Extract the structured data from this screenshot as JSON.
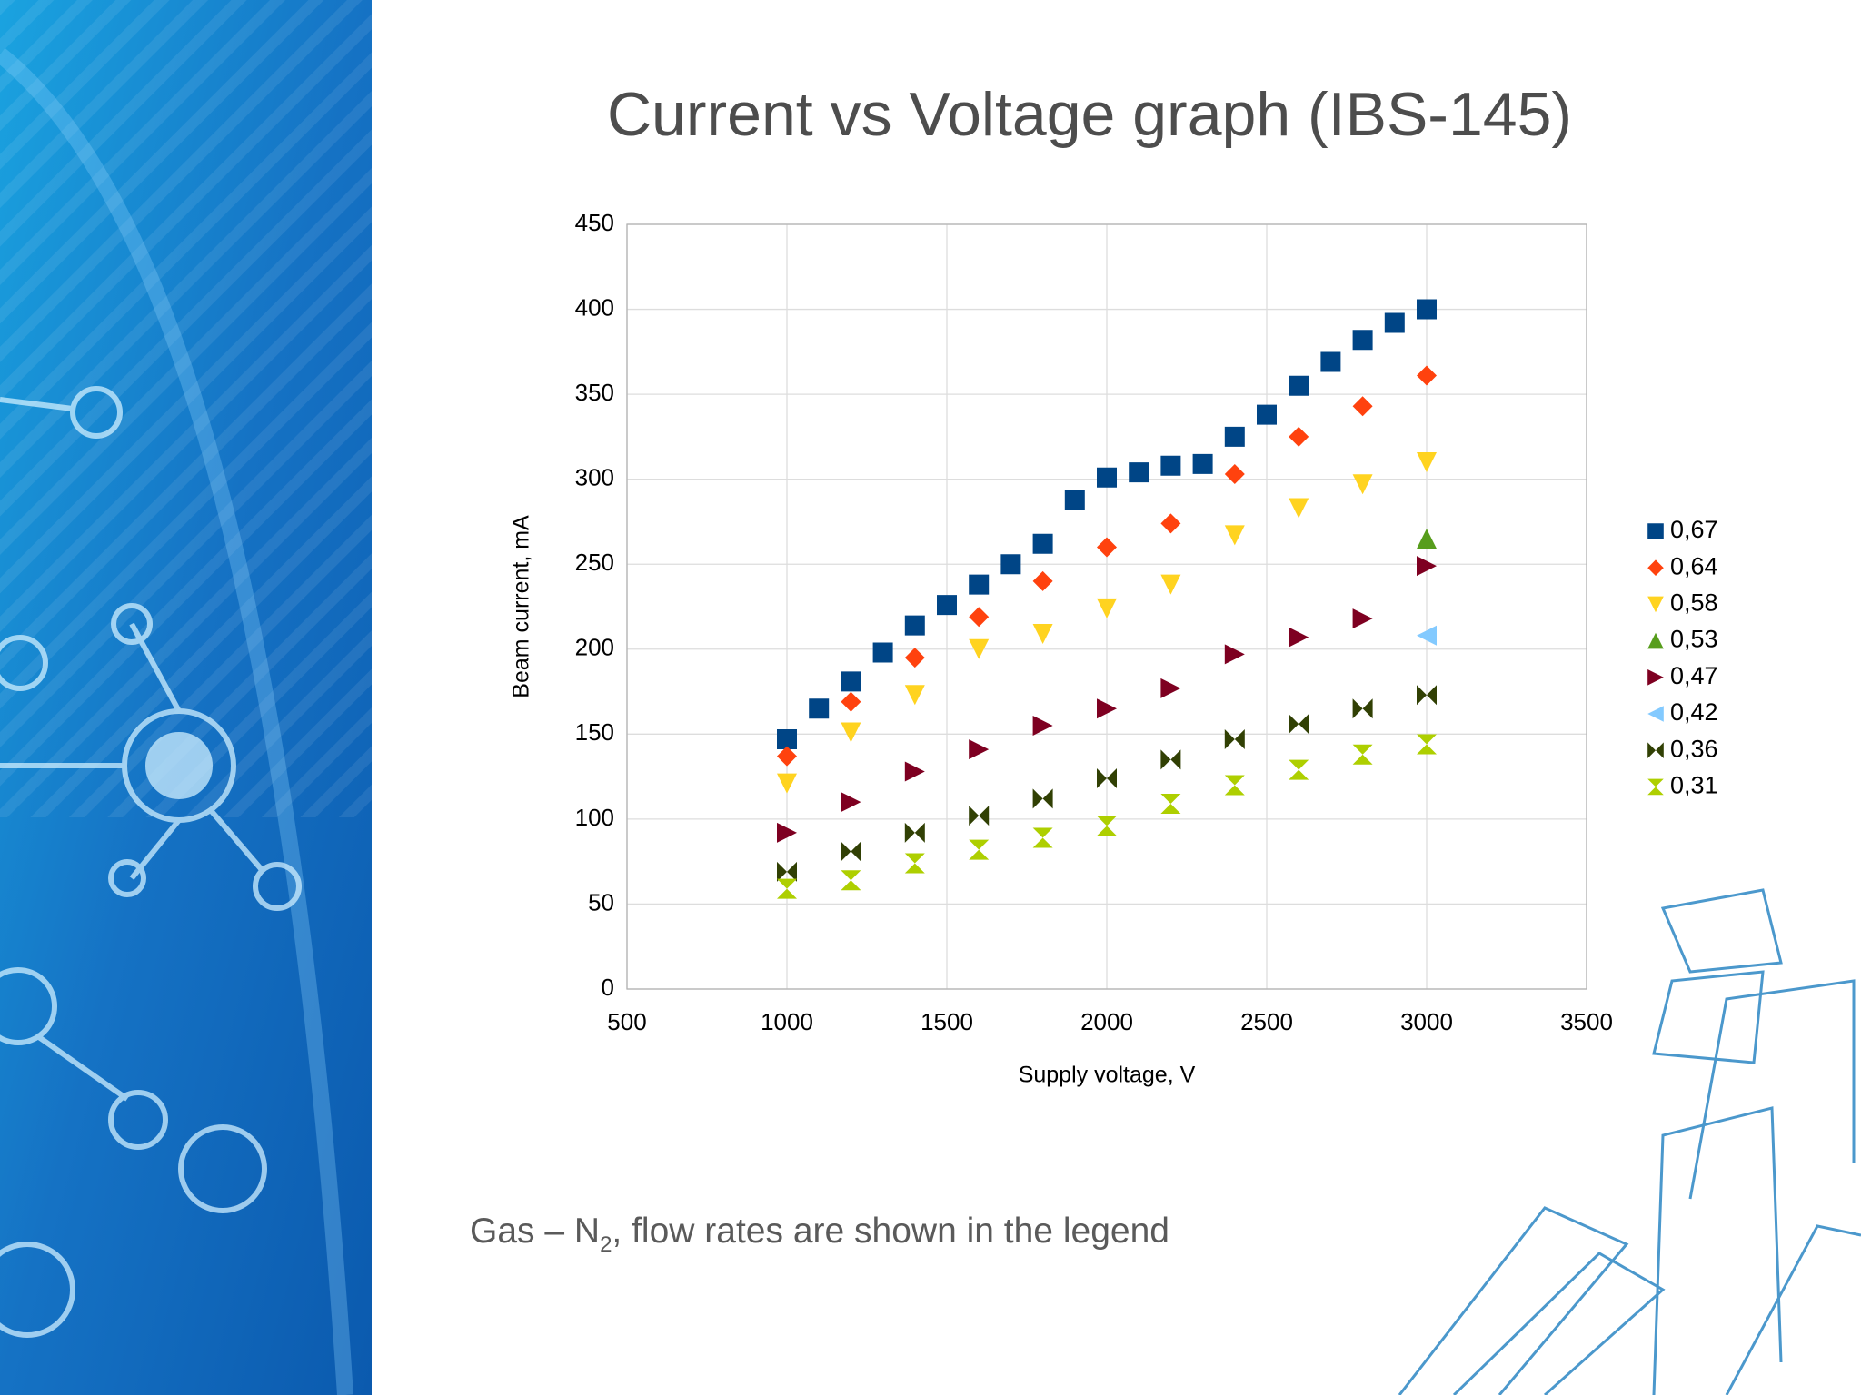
{
  "chart_data": {
    "type": "scatter",
    "title": "Current vs Voltage graph (IBS-145)",
    "xlabel": "Supply voltage, V",
    "ylabel": "Beam current, mA",
    "xlim": [
      500,
      3500
    ],
    "xticks": [
      500,
      1000,
      1500,
      2000,
      2500,
      3000,
      3500
    ],
    "ylim": [
      0,
      450
    ],
    "yticks": [
      0,
      50,
      100,
      150,
      200,
      250,
      300,
      350,
      400,
      450
    ],
    "grid": true,
    "legend": "right",
    "series": [
      {
        "name": "0,67",
        "color": "#004586",
        "marker": "square",
        "x": [
          1000,
          1100,
          1200,
          1300,
          1400,
          1500,
          1600,
          1700,
          1800,
          1900,
          2000,
          2100,
          2200,
          2300,
          2400,
          2500,
          2600,
          2700,
          2800,
          2900,
          3000
        ],
        "values": [
          147,
          165,
          181,
          198,
          214,
          226,
          238,
          250,
          262,
          288,
          301,
          304,
          308,
          309,
          325,
          338,
          355,
          369,
          382,
          392,
          400
        ]
      },
      {
        "name": "0,64",
        "color": "#ff420e",
        "marker": "diamond",
        "x": [
          1000,
          1200,
          1400,
          1600,
          1800,
          2000,
          2200,
          2400,
          2600,
          2800,
          3000
        ],
        "values": [
          137,
          169,
          195,
          219,
          240,
          260,
          274,
          303,
          325,
          343,
          361
        ]
      },
      {
        "name": "0,58",
        "color": "#ffd320",
        "marker": "triangle-down",
        "x": [
          1000,
          1200,
          1400,
          1600,
          1800,
          2000,
          2200,
          2400,
          2600,
          2800,
          3000
        ],
        "values": [
          121,
          151,
          173,
          200,
          209,
          224,
          238,
          267,
          283,
          297,
          310
        ]
      },
      {
        "name": "0,53",
        "color": "#579d1c",
        "marker": "triangle-up",
        "x": [
          3000
        ],
        "values": [
          265
        ]
      },
      {
        "name": "0,47",
        "color": "#7e0021",
        "marker": "triangle-right",
        "x": [
          1000,
          1200,
          1400,
          1600,
          1800,
          2000,
          2200,
          2400,
          2600,
          2800,
          3000
        ],
        "values": [
          92,
          110,
          128,
          141,
          155,
          165,
          177,
          197,
          207,
          218,
          249
        ]
      },
      {
        "name": "0,42",
        "color": "#83caff",
        "marker": "triangle-left",
        "x": [
          3000
        ],
        "values": [
          208
        ]
      },
      {
        "name": "0,36",
        "color": "#314004",
        "marker": "bowtie",
        "x": [
          1000,
          1200,
          1400,
          1600,
          1800,
          2000,
          2200,
          2400,
          2600,
          2800,
          3000
        ],
        "values": [
          69,
          81,
          92,
          102,
          112,
          124,
          135,
          147,
          156,
          165,
          173
        ]
      },
      {
        "name": "0,31",
        "color": "#aecf00",
        "marker": "hourglass",
        "x": [
          1000,
          1200,
          1400,
          1600,
          1800,
          2000,
          2200,
          2400,
          2600,
          2800,
          3000
        ],
        "values": [
          59,
          64,
          74,
          82,
          89,
          96,
          109,
          120,
          129,
          138,
          144
        ]
      }
    ]
  },
  "caption": {
    "prefix": "Gas – N",
    "subscript": "2",
    "suffix": ", flow rates are shown in the legend"
  }
}
